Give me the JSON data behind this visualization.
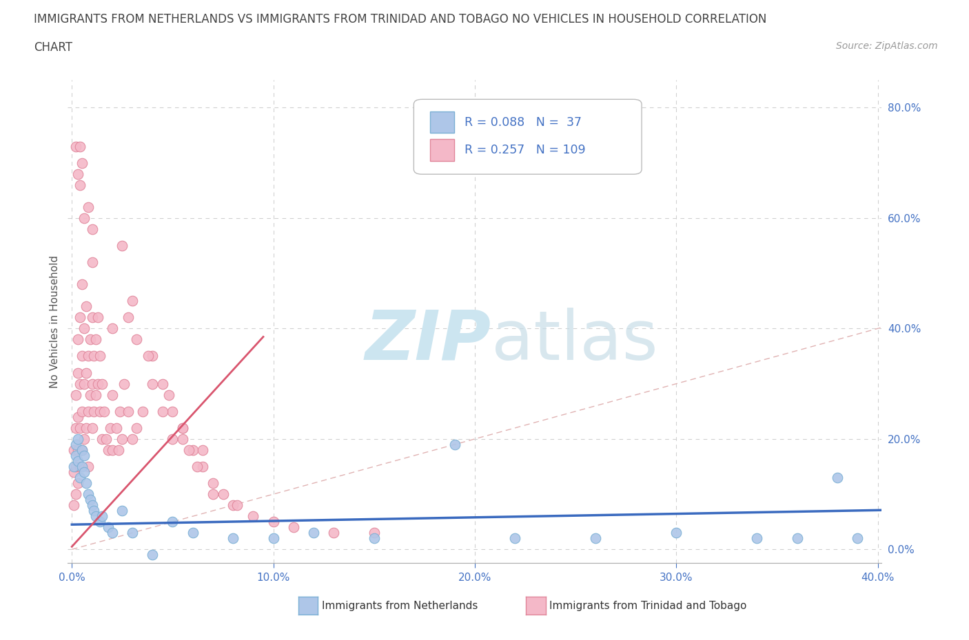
{
  "title_line1": "IMMIGRANTS FROM NETHERLANDS VS IMMIGRANTS FROM TRINIDAD AND TOBAGO NO VEHICLES IN HOUSEHOLD CORRELATION",
  "title_line2": "CHART",
  "source_text": "Source: ZipAtlas.com",
  "ylabel": "No Vehicles in Household",
  "xlim": [
    -0.002,
    0.402
  ],
  "ylim": [
    -0.025,
    0.85
  ],
  "xticks": [
    0.0,
    0.1,
    0.2,
    0.3,
    0.4
  ],
  "yticks_right": [
    0.0,
    0.2,
    0.4,
    0.6,
    0.8
  ],
  "ytick_labels_right": [
    "0.0%",
    "20.0%",
    "40.0%",
    "60.0%",
    "80.0%"
  ],
  "xtick_labels": [
    "0.0%",
    "10.0%",
    "20.0%",
    "30.0%",
    "40.0%"
  ],
  "netherlands_color": "#aec6e8",
  "netherlands_edge_color": "#7aafd4",
  "trinidad_color": "#f4b8c8",
  "trinidad_edge_color": "#e0859a",
  "netherlands_R": 0.088,
  "netherlands_N": 37,
  "trinidad_R": 0.257,
  "trinidad_N": 109,
  "netherlands_line_color": "#3a6abf",
  "trinidad_line_color": "#d9556e",
  "diag_line_color": "#ddaaaa",
  "watermark_color": "#cce5f0",
  "background_color": "#ffffff",
  "grid_color": "#d0d0d0",
  "legend_edge_color": "#bbbbbb",
  "legend_text_color": "#4472c4",
  "title_color": "#444444",
  "ylabel_color": "#555555",
  "tick_color": "#4472c4",
  "source_color": "#999999",
  "bottom_legend_color": "#333333"
}
